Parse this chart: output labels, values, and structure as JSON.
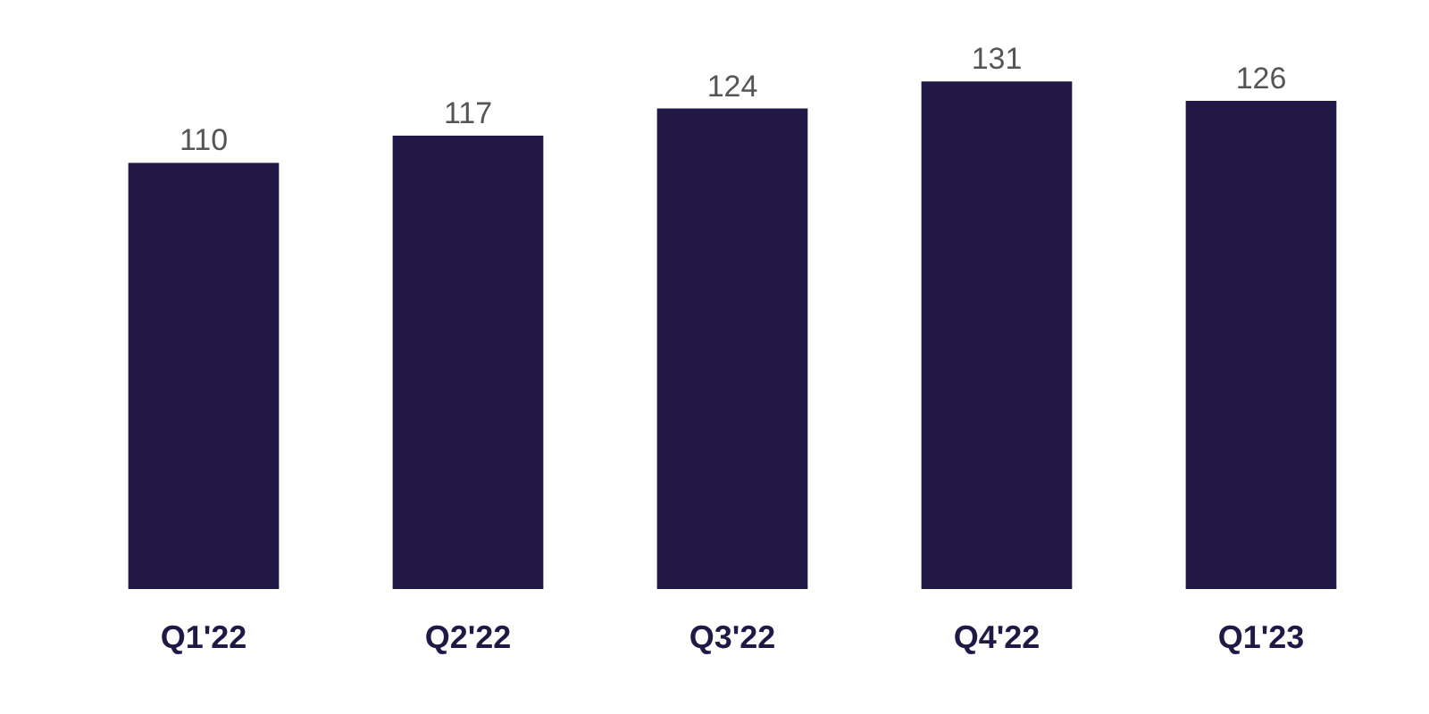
{
  "chart_data": {
    "type": "bar",
    "categories": [
      "Q1'22",
      "Q2'22",
      "Q3'22",
      "Q4'22",
      "Q1'23"
    ],
    "values": [
      110,
      117,
      124,
      131,
      126
    ],
    "color": "#211845",
    "data_labels": true
  }
}
